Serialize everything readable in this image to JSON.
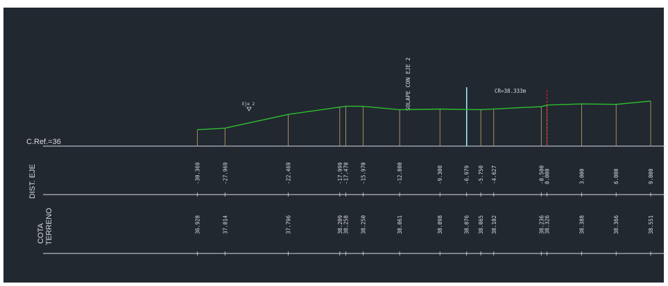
{
  "drawing": {
    "reference_label": "C.Ref.=36",
    "row1_label": "DIST. EJE",
    "row2_label_1": "COTA",
    "row2_label_2": "TERRENO",
    "axis_marker_label": "Eje 2",
    "overlap_label": "SOLAPE CON EJE 2",
    "cr_label": "CR=38.333m"
  },
  "colors": {
    "background": "#212830",
    "profile": "#2fbf2f",
    "ticks": "#c8a870",
    "guide_lines": "#d8dde2",
    "overlap_line": "#9fe8ff",
    "cr_line": "#e02020"
  },
  "chart_data": {
    "type": "line",
    "title": "",
    "ref_level": 36,
    "stations": [
      {
        "dist": "-30.369",
        "cota": "36.928"
      },
      {
        "dist": "-27.969",
        "cota": "37.014"
      },
      {
        "dist": "-22.469",
        "cota": "37.796"
      },
      {
        "dist": "-17.999",
        "cota": "38.209"
      },
      {
        "dist": "-17.470",
        "cota": "38.258"
      },
      {
        "dist": "-15.970",
        "cota": "38.250"
      },
      {
        "dist": "-12.800",
        "cota": "38.061"
      },
      {
        "dist": "-9.300",
        "cota": "38.098"
      },
      {
        "dist": "-6.979",
        "cota": "38.076"
      },
      {
        "dist": "-5.750",
        "cota": "38.065"
      },
      {
        "dist": "-4.627",
        "cota": "38.102"
      },
      {
        "dist": "-0.500",
        "cota": "38.236"
      },
      {
        "dist": "0.000",
        "cota": "38.326"
      },
      {
        "dist": "3.000",
        "cota": "38.388"
      },
      {
        "dist": "6.000",
        "cota": "38.366"
      },
      {
        "dist": "9.000",
        "cota": "38.551"
      }
    ]
  }
}
